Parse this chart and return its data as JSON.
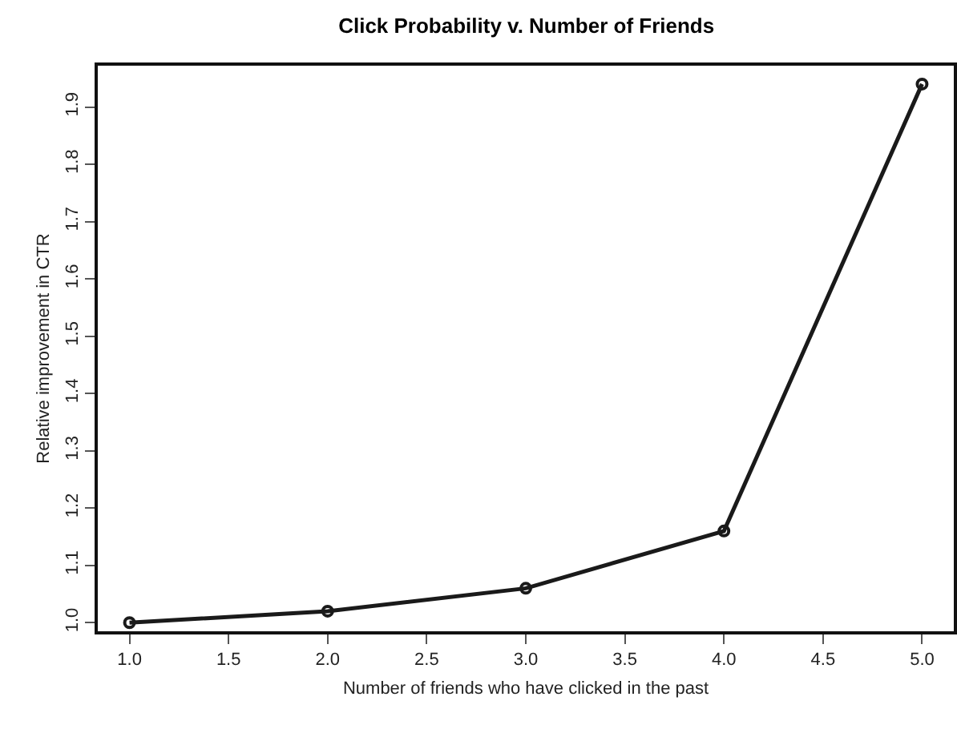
{
  "chart_data": {
    "type": "line",
    "title": "Click Probability v. Number of Friends",
    "xlabel": "Number of friends who have clicked in the past",
    "ylabel": "Relative improvement in CTR",
    "x": [
      1,
      2,
      3,
      4,
      5
    ],
    "series": [
      {
        "color": "#1a1a1a",
        "values": [
          1.0,
          1.02,
          1.06,
          1.16,
          1.94
        ]
      }
    ],
    "xlim": [
      0.84,
      5.16
    ],
    "xticks": [
      {
        "value": 1,
        "label": "1.0"
      },
      1.5,
      {
        "value": 2,
        "label": "2.0"
      },
      2.5,
      {
        "value": 3,
        "label": "3.0"
      },
      3.5,
      {
        "value": 4,
        "label": "4.0"
      },
      4.5,
      {
        "value": 5,
        "label": "5.0"
      }
    ],
    "ylim": [
      0.985,
      1.972
    ],
    "yticks": [
      {
        "value": 1,
        "label": "1.0"
      },
      1.1,
      1.2,
      1.3,
      1.4,
      1.5,
      1.6,
      1.7,
      1.8,
      1.9
    ],
    "grid": false,
    "marker": "circle",
    "line_style": "solid"
  }
}
